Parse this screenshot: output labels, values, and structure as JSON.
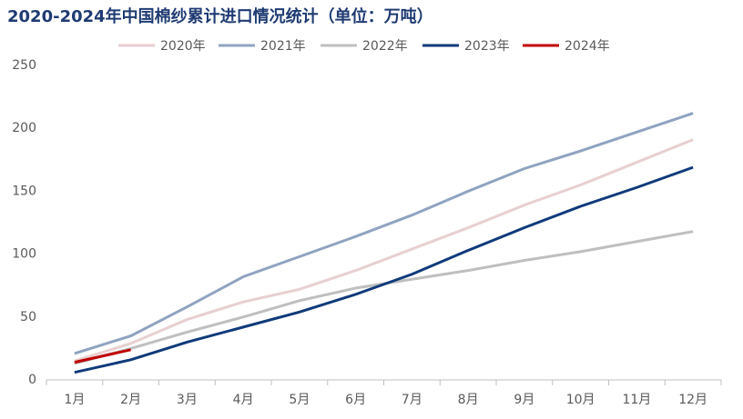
{
  "chart_data": {
    "type": "line",
    "title": "2020-2024年中国棉纱累计进口情况统计（单位：万吨）",
    "categories": [
      "1月",
      "2月",
      "3月",
      "4月",
      "5月",
      "6月",
      "7月",
      "8月",
      "9月",
      "10月",
      "11月",
      "12月"
    ],
    "series": [
      {
        "name": "2020年",
        "color": "#e8cfd0",
        "values": [
          15,
          29,
          48,
          62,
          72,
          87,
          104,
          121,
          139,
          155,
          173,
          191
        ]
      },
      {
        "name": "2021年",
        "color": "#8fa3c0",
        "values": [
          21,
          35,
          58,
          82,
          98,
          114,
          131,
          150,
          168,
          182,
          197,
          212
        ]
      },
      {
        "name": "2022年",
        "color": "#bfbfbf",
        "values": [
          13,
          25,
          38,
          50,
          63,
          73,
          80,
          87,
          95,
          102,
          110,
          118
        ]
      },
      {
        "name": "2023年",
        "color": "#103a7a",
        "values": [
          6,
          16,
          30,
          42,
          54,
          68,
          84,
          103,
          121,
          138,
          153,
          169
        ]
      },
      {
        "name": "2024年",
        "color": "#c00000",
        "values": [
          14,
          24,
          null,
          null,
          null,
          null,
          null,
          null,
          null,
          null,
          null,
          null
        ]
      }
    ],
    "ylim": [
      0,
      250
    ],
    "yticks": [
      0,
      50,
      100,
      150,
      200,
      250
    ],
    "grid": false,
    "legend": "top"
  }
}
